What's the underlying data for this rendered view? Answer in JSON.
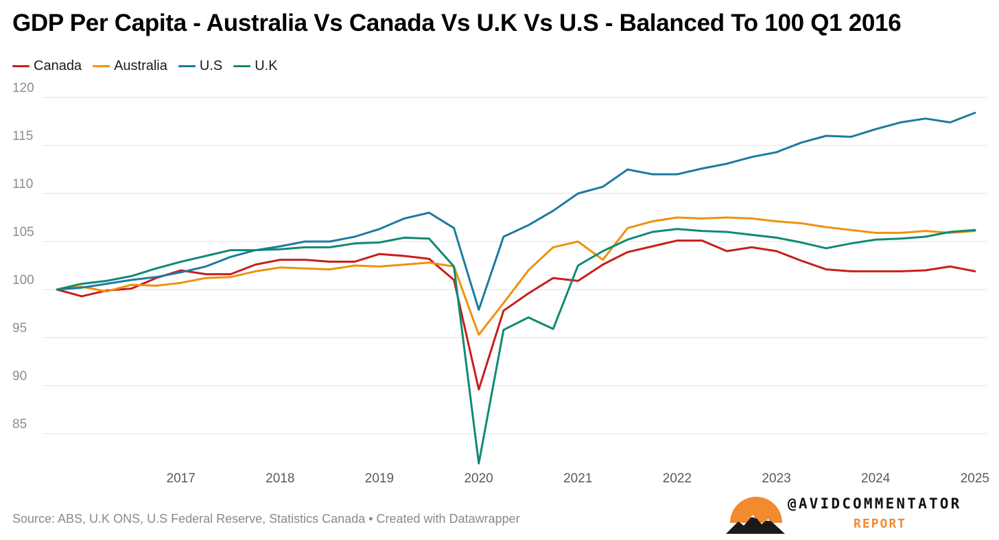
{
  "title": "GDP Per Capita - Australia Vs Canada Vs U.K Vs U.S - Balanced To 100 Q1 2016",
  "legend": [
    {
      "label": "Canada",
      "color": "#c71e1d"
    },
    {
      "label": "Australia",
      "color": "#f0900d"
    },
    {
      "label": "U.S",
      "color": "#1d7aa1"
    },
    {
      "label": "U.K",
      "color": "#0f8a73"
    }
  ],
  "source": "Source: ABS, U.K ONS, U.S Federal Reserve, Statistics Canada • Created with Datawrapper",
  "brand": {
    "handle": "@AVIDCOMMENTATOR",
    "sub": "REPORT",
    "logo_icon": "sunset-mountains-icon",
    "logo_color": "#f28a2e"
  },
  "chart_data": {
    "type": "line",
    "title": "GDP Per Capita - Australia Vs Canada Vs U.K Vs U.S - Balanced To 100 Q1 2016",
    "xlabel": "",
    "ylabel": "",
    "x": [
      "2016 Q1",
      "2016 Q2",
      "2016 Q3",
      "2016 Q4",
      "2017 Q1",
      "2017 Q2",
      "2017 Q3",
      "2017 Q4",
      "2018 Q1",
      "2018 Q2",
      "2018 Q3",
      "2018 Q4",
      "2019 Q1",
      "2019 Q2",
      "2019 Q3",
      "2019 Q4",
      "2020 Q1",
      "2020 Q2",
      "2020 Q3",
      "2020 Q4",
      "2021 Q1",
      "2021 Q2",
      "2021 Q3",
      "2021 Q4",
      "2022 Q1",
      "2022 Q2",
      "2022 Q3",
      "2022 Q4",
      "2023 Q1",
      "2023 Q2",
      "2023 Q3",
      "2023 Q4",
      "2024 Q1",
      "2024 Q2",
      "2024 Q3",
      "2024 Q4",
      "2025 Q1",
      "2025 Q2"
    ],
    "x_ticks": [
      "2017",
      "2018",
      "2019",
      "2020",
      "2021",
      "2022",
      "2023",
      "2024",
      "2025"
    ],
    "y_ticks": [
      85,
      90,
      95,
      100,
      105,
      110,
      115,
      120
    ],
    "ylim": [
      82,
      121
    ],
    "grid": "horizontal",
    "legend_position": "top-left",
    "series": [
      {
        "name": "Canada",
        "color": "#c71e1d",
        "values": [
          100.0,
          99.3,
          99.9,
          100.1,
          101.2,
          102.0,
          101.6,
          101.6,
          102.6,
          103.1,
          103.1,
          102.9,
          102.9,
          103.7,
          103.5,
          103.2,
          101.0,
          89.6,
          97.8,
          99.6,
          101.2,
          100.9,
          102.6,
          103.9,
          104.5,
          105.1,
          105.1,
          104.0,
          104.4,
          104.0,
          103.0,
          102.1,
          101.9,
          101.9,
          101.9,
          102.0,
          102.4,
          101.9
        ]
      },
      {
        "name": "Australia",
        "color": "#f0900d",
        "values": [
          100.0,
          100.3,
          99.8,
          100.5,
          100.4,
          100.7,
          101.2,
          101.3,
          101.9,
          102.3,
          102.2,
          102.1,
          102.5,
          102.4,
          102.6,
          102.8,
          102.4,
          95.3,
          98.6,
          102.0,
          104.4,
          105.0,
          103.1,
          106.4,
          107.1,
          107.5,
          107.4,
          107.5,
          107.4,
          107.1,
          106.9,
          106.5,
          106.2,
          105.9,
          105.9,
          106.1,
          105.9,
          106.1
        ]
      },
      {
        "name": "U.S",
        "color": "#1d7aa1",
        "values": [
          100.0,
          100.2,
          100.6,
          101.0,
          101.3,
          101.8,
          102.4,
          103.4,
          104.1,
          104.5,
          105.0,
          105.0,
          105.5,
          106.3,
          107.4,
          108.0,
          106.4,
          97.9,
          105.5,
          106.7,
          108.2,
          110.0,
          110.7,
          112.5,
          112.0,
          112.0,
          112.6,
          113.1,
          113.8,
          114.3,
          115.3,
          116.0,
          115.9,
          116.7,
          117.4,
          117.8,
          117.4,
          118.4
        ]
      },
      {
        "name": "U.K",
        "color": "#0f8a73",
        "values": [
          100.0,
          100.6,
          100.9,
          101.4,
          102.2,
          102.9,
          103.5,
          104.1,
          104.1,
          104.2,
          104.4,
          104.4,
          104.8,
          104.9,
          105.4,
          105.3,
          102.4,
          81.9,
          95.8,
          97.1,
          95.9,
          102.5,
          104.0,
          105.2,
          106.0,
          106.3,
          106.1,
          106.0,
          105.7,
          105.4,
          104.9,
          104.3,
          104.8,
          105.2,
          105.3,
          105.5,
          106.0,
          106.2
        ]
      }
    ]
  }
}
